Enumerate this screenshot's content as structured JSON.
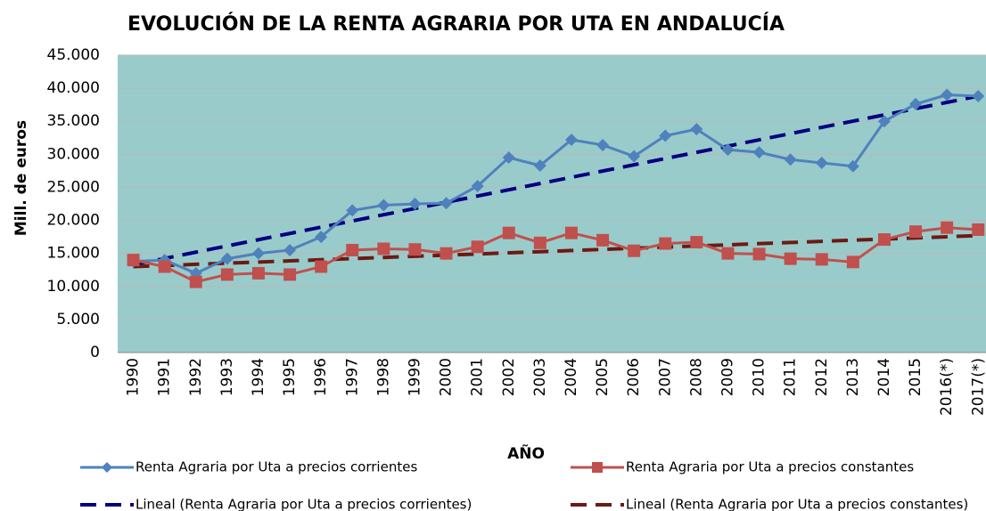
{
  "chart_data": {
    "type": "line",
    "title": "EVOLUCIÓN DE LA RENTA AGRARIA POR UTA EN ANDALUCÍA",
    "x_label": "AÑO",
    "y_label": "Mill. de euros",
    "categories": [
      "1990",
      "1991",
      "1992",
      "1993",
      "1994",
      "1995",
      "1996",
      "1997",
      "1998",
      "1999",
      "2000",
      "2001",
      "2002",
      "2003",
      "2004",
      "2005",
      "2006",
      "2007",
      "2008",
      "2009",
      "2010",
      "2011",
      "2012",
      "2013",
      "2014",
      "2015",
      "2016(*)",
      "2017(*)"
    ],
    "series": [
      {
        "name": "Renta Agraria por Uta a precios corrientes",
        "color": "#4f81bd",
        "marker": "diamond",
        "values": [
          13800,
          14000,
          12000,
          14200,
          15000,
          15500,
          17500,
          21500,
          22300,
          22500,
          22600,
          25200,
          29500,
          28300,
          32200,
          31400,
          29700,
          32800,
          33800,
          30700,
          30300,
          29200,
          28700,
          28200,
          35000,
          37600,
          39000,
          38800
        ]
      },
      {
        "name": "Renta Agraria por Uta a precios constantes",
        "color": "#c0504d",
        "marker": "square",
        "values": [
          14000,
          13000,
          10700,
          11800,
          12000,
          11800,
          13000,
          15500,
          15700,
          15600,
          15000,
          16000,
          18100,
          16600,
          18100,
          17000,
          15400,
          16500,
          16700,
          15000,
          14900,
          14200,
          14100,
          13700,
          17100,
          18300,
          18900,
          18600
        ]
      },
      {
        "name": "Lineal (Renta Agraria por Uta a precios corrientes)",
        "color": "#000080",
        "dashed": true,
        "values": [
          13300,
          14240,
          15190,
          16130,
          17080,
          18020,
          18970,
          19910,
          20860,
          21800,
          22740,
          23690,
          24630,
          25580,
          26520,
          27470,
          28410,
          29360,
          30300,
          31240,
          32190,
          33130,
          34080,
          35020,
          35970,
          36910,
          37860,
          38800
        ]
      },
      {
        "name": "Lineal (Renta Agraria por Uta a precios constantes)",
        "color": "#6b1a14",
        "dashed": true,
        "values": [
          13000,
          13170,
          13350,
          13520,
          13700,
          13870,
          14040,
          14220,
          14390,
          14570,
          14740,
          14910,
          15090,
          15260,
          15440,
          15610,
          15780,
          15960,
          16130,
          16300,
          16480,
          16650,
          16830,
          17000,
          17170,
          17350,
          17520,
          17700
        ]
      }
    ],
    "ylim": [
      0,
      45000
    ],
    "yticks": [
      0,
      {
        "value": 5000,
        "label": "5.000"
      },
      {
        "value": 10000,
        "label": "10.000"
      },
      {
        "value": 15000,
        "label": "15.000"
      },
      {
        "value": 20000,
        "label": "20.000"
      },
      {
        "value": 25000,
        "label": "25.000"
      },
      {
        "value": 30000,
        "label": "30.000"
      },
      {
        "value": 35000,
        "label": "35.000"
      },
      {
        "value": 40000,
        "label": "40.000"
      },
      {
        "value": 45000,
        "label": "45.000"
      }
    ],
    "grid": true,
    "plot_background": "#9acbcb",
    "legend": "bottom"
  }
}
